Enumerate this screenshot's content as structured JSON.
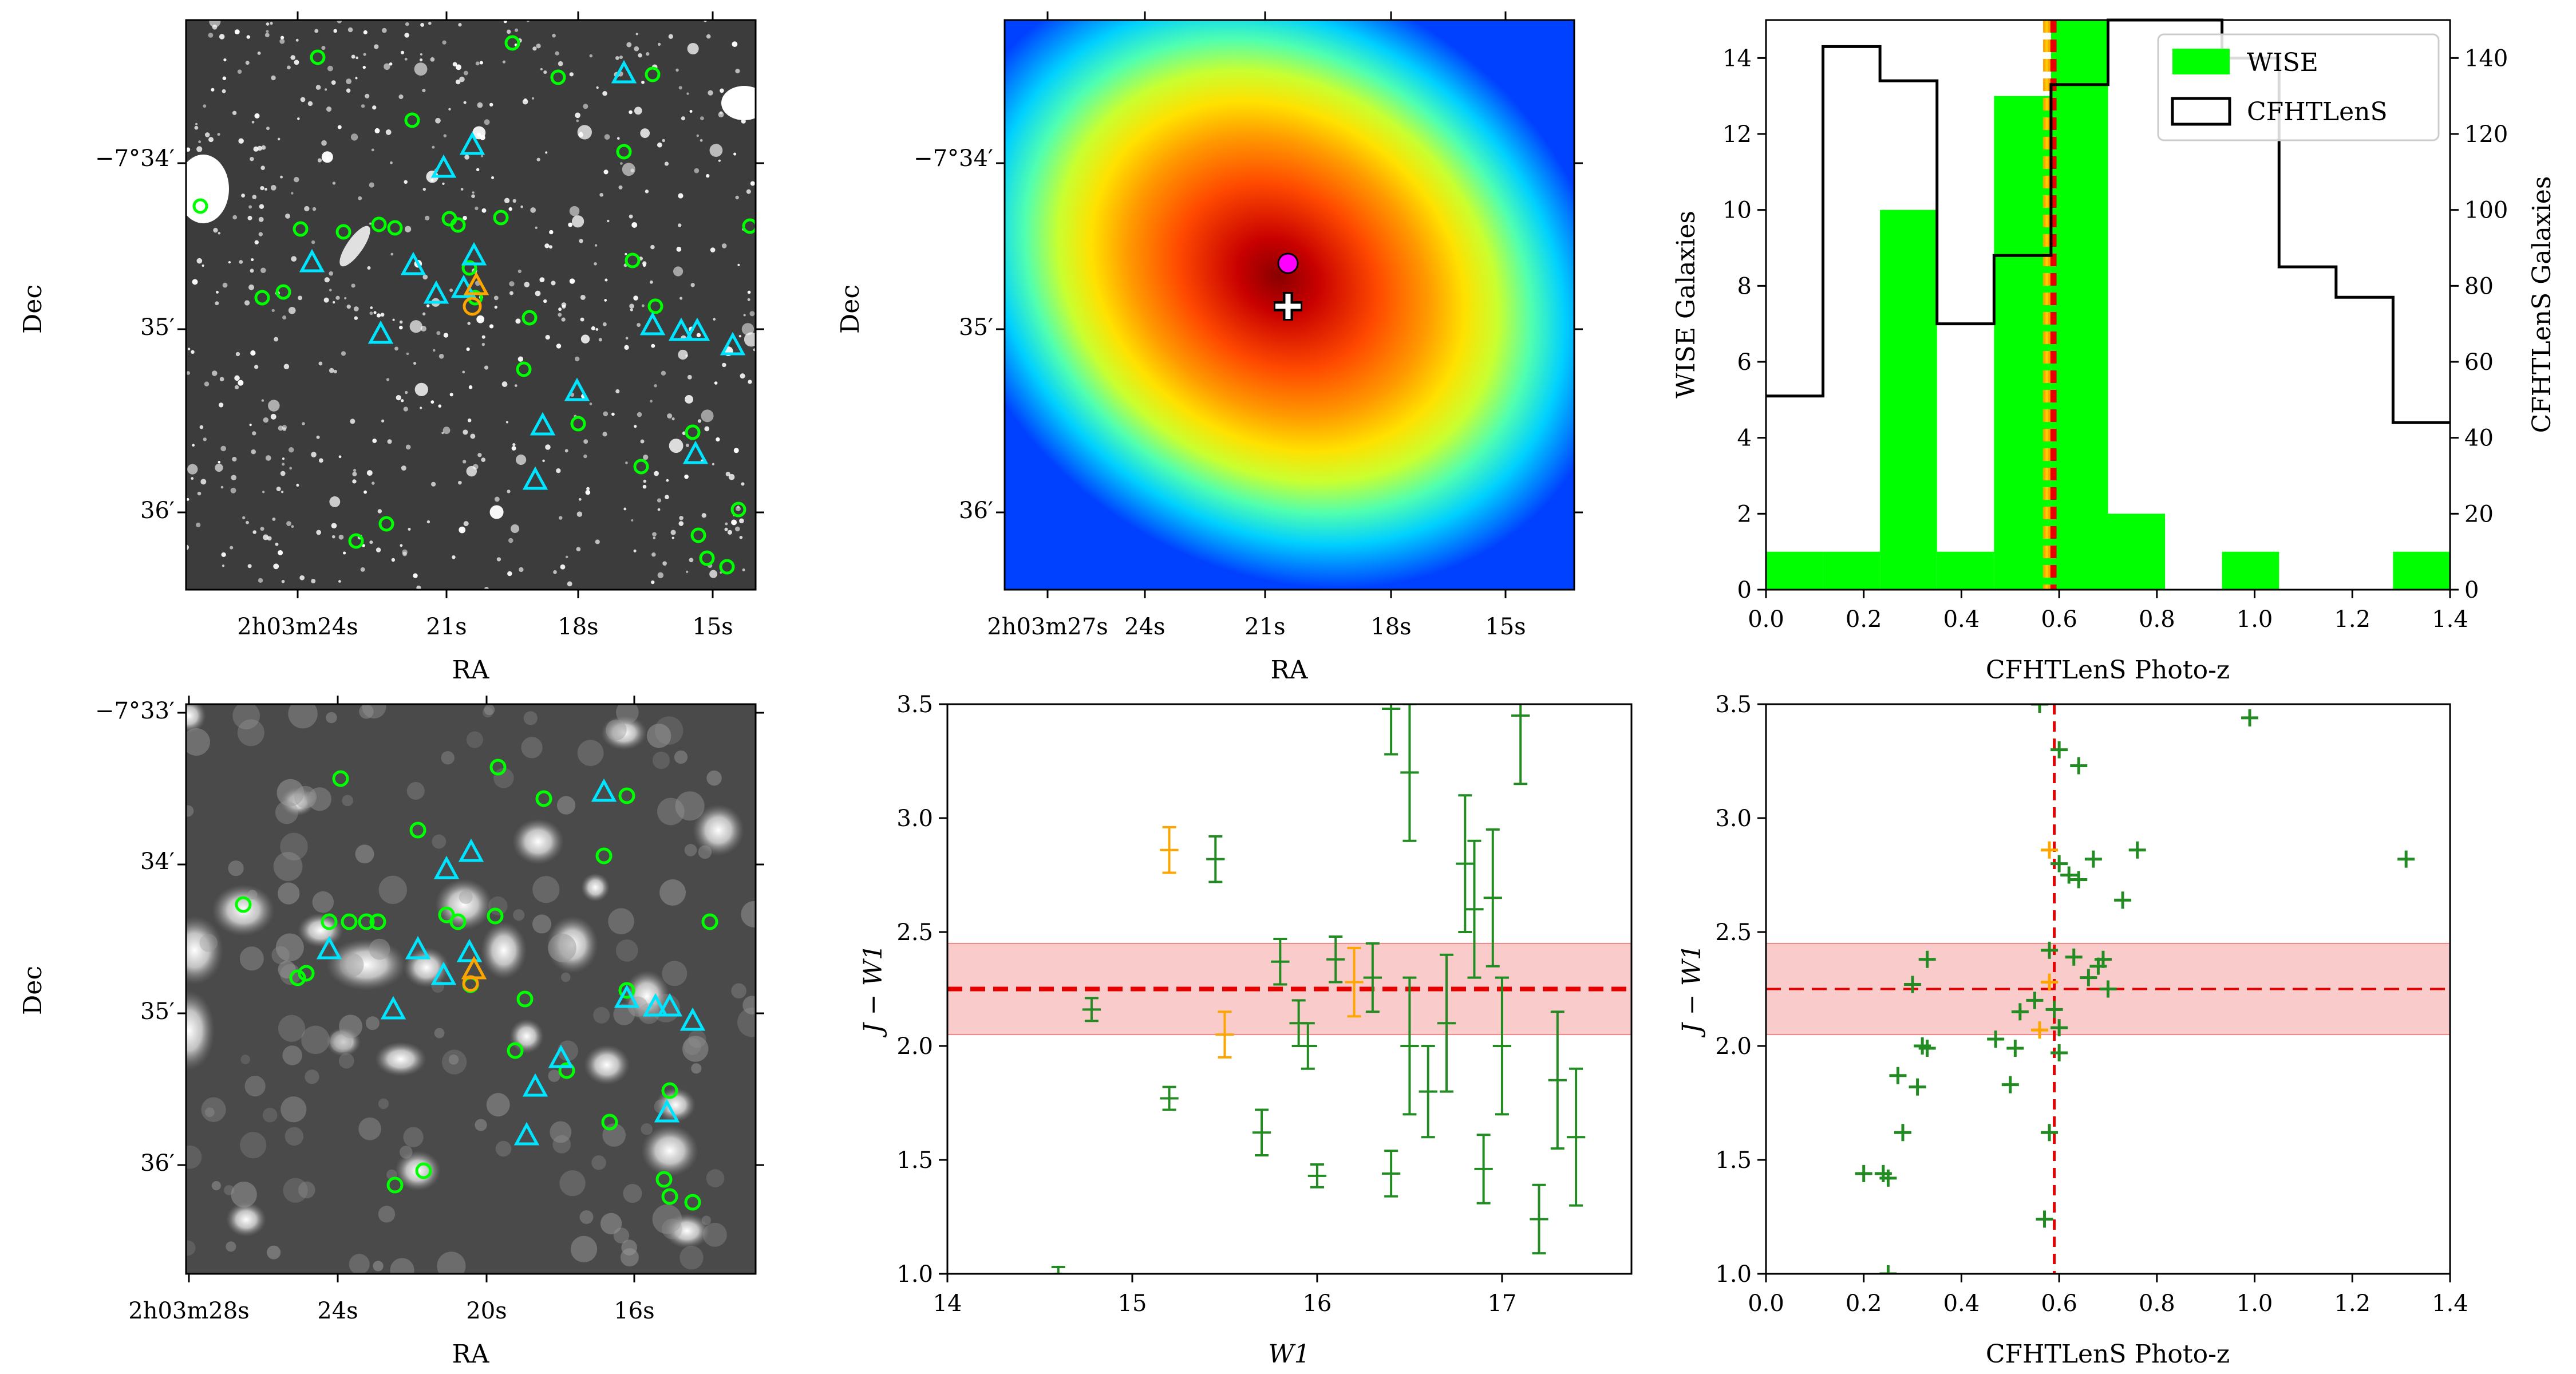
{
  "colors": {
    "wise": "#00ff00",
    "cfht": "#000000",
    "marker_green": "#228b22",
    "marker_orange": "#ffa500",
    "cyan": "#00e5ff",
    "red_line": "#e60000",
    "band": "#f5a0a0",
    "magenta": "#ff00ff"
  },
  "panels": {
    "p1": {
      "xlabel": "RA",
      "ylabel": "Dec",
      "xticks": [
        "2h03m24s",
        "21s",
        "18s",
        "15s"
      ],
      "yticks": [
        "−7°34′",
        "35′",
        "36′"
      ]
    },
    "p2": {
      "xlabel": "RA",
      "ylabel": "Dec",
      "xticks": [
        "2h03m27s",
        "24s",
        "21s",
        "18s",
        "15s"
      ],
      "yticks": [
        "−7°34′",
        "35′",
        "36′"
      ]
    },
    "p4": {
      "xlabel": "RA",
      "ylabel": "Dec",
      "xticks": [
        "2h03m28s",
        "24s",
        "20s",
        "16s"
      ],
      "yticks": [
        "−7°33′",
        "34′",
        "35′",
        "36′"
      ]
    }
  },
  "chart_data": [
    {
      "type": "bar",
      "panel": "histogram",
      "xlabel": "CFHTLenS Photo-z",
      "ylabel": "WISE Galaxies",
      "ylabel_right": "CFHTLenS Galaxies",
      "xlim": [
        0.0,
        1.4
      ],
      "ylim": [
        0,
        15
      ],
      "ylim_right": [
        0,
        150
      ],
      "xticks": [
        "0.0",
        "0.2",
        "0.4",
        "0.6",
        "0.8",
        "1.0",
        "1.2",
        "1.4"
      ],
      "yticks": [
        "0",
        "2",
        "4",
        "6",
        "8",
        "10",
        "12",
        "14"
      ],
      "yticks_right": [
        "0",
        "20",
        "40",
        "60",
        "80",
        "100",
        "120",
        "140"
      ],
      "legend": [
        "WISE",
        "CFHTLenS"
      ],
      "bin_edges": [
        0.0,
        0.1167,
        0.2333,
        0.35,
        0.4667,
        0.5833,
        0.7,
        0.8167,
        0.9333,
        1.05,
        1.1667,
        1.2833,
        1.4
      ],
      "wise_counts": [
        1,
        1,
        10,
        1,
        13,
        15,
        2,
        0,
        1,
        0,
        0,
        1
      ],
      "cfht_counts": [
        51,
        143,
        134,
        70,
        88,
        133,
        150,
        150,
        140,
        85,
        77,
        44
      ],
      "vlines": [
        0.57,
        0.575,
        0.58,
        0.585,
        0.59
      ]
    },
    {
      "type": "scatter",
      "panel": "color-magnitude",
      "xlabel": "W1",
      "ylabel": "J − W1",
      "xlim": [
        14,
        17.7
      ],
      "ylim": [
        1.0,
        3.5
      ],
      "xticks": [
        "14",
        "15",
        "16",
        "17"
      ],
      "yticks": [
        "1.0",
        "1.5",
        "2.0",
        "2.5",
        "3.0",
        "3.5"
      ],
      "hline": 2.25,
      "band": [
        2.05,
        2.45
      ],
      "green": [
        [
          14.6,
          1.0,
          0.02,
          0.03
        ],
        [
          14.78,
          2.16,
          0.05,
          0.05
        ],
        [
          15.2,
          1.77,
          0.05,
          0.05
        ],
        [
          15.45,
          2.82,
          0.05,
          0.1
        ],
        [
          15.7,
          1.62,
          0.05,
          0.1
        ],
        [
          15.8,
          2.37,
          0.05,
          0.1
        ],
        [
          15.9,
          2.1,
          0.05,
          0.1
        ],
        [
          15.95,
          2.0,
          0.05,
          0.1
        ],
        [
          16.0,
          1.43,
          0.05,
          0.05
        ],
        [
          16.1,
          2.38,
          0.05,
          0.1
        ],
        [
          16.3,
          2.3,
          0.05,
          0.15
        ],
        [
          16.4,
          1.44,
          0.05,
          0.1
        ],
        [
          16.4,
          3.48,
          0.05,
          0.2
        ],
        [
          16.5,
          3.2,
          0.05,
          0.3
        ],
        [
          16.5,
          2.0,
          0.05,
          0.3
        ],
        [
          16.6,
          1.8,
          0.05,
          0.2
        ],
        [
          16.7,
          2.1,
          0.05,
          0.3
        ],
        [
          16.8,
          2.8,
          0.05,
          0.3
        ],
        [
          16.85,
          2.6,
          0.05,
          0.3
        ],
        [
          16.9,
          1.46,
          0.05,
          0.15
        ],
        [
          16.95,
          2.65,
          0.05,
          0.3
        ],
        [
          17.0,
          2.0,
          0.05,
          0.3
        ],
        [
          17.1,
          3.45,
          0.05,
          0.3
        ],
        [
          17.2,
          1.24,
          0.05,
          0.15
        ],
        [
          17.3,
          1.85,
          0.05,
          0.3
        ],
        [
          17.4,
          1.6,
          0.05,
          0.3
        ]
      ],
      "orange": [
        [
          15.2,
          2.86,
          0.05,
          0.1
        ],
        [
          15.5,
          2.05,
          0.05,
          0.1
        ],
        [
          16.2,
          2.28,
          0.05,
          0.15
        ]
      ]
    },
    {
      "type": "scatter",
      "panel": "color-photoz",
      "xlabel": "CFHTLenS Photo-z",
      "ylabel": "J − W1",
      "xlim": [
        0.0,
        1.4
      ],
      "ylim": [
        1.0,
        3.5
      ],
      "xticks": [
        "0.0",
        "0.2",
        "0.4",
        "0.6",
        "0.8",
        "1.0",
        "1.2",
        "1.4"
      ],
      "yticks": [
        "1.0",
        "1.5",
        "2.0",
        "2.5",
        "3.0",
        "3.5"
      ],
      "hline": 2.25,
      "band": [
        2.05,
        2.45
      ],
      "vline": 0.59,
      "green": [
        [
          0.2,
          1.44
        ],
        [
          0.24,
          1.44
        ],
        [
          0.25,
          1.42
        ],
        [
          0.25,
          1.0
        ],
        [
          0.27,
          1.87
        ],
        [
          0.28,
          1.62
        ],
        [
          0.3,
          2.27
        ],
        [
          0.31,
          1.82
        ],
        [
          0.32,
          2.0
        ],
        [
          0.33,
          2.38
        ],
        [
          0.33,
          1.99
        ],
        [
          0.47,
          2.03
        ],
        [
          0.5,
          1.83
        ],
        [
          0.51,
          1.99
        ],
        [
          0.52,
          2.15
        ],
        [
          0.55,
          2.2
        ],
        [
          0.57,
          1.24
        ],
        [
          0.58,
          1.62
        ],
        [
          0.58,
          2.42
        ],
        [
          0.59,
          2.16
        ],
        [
          0.6,
          2.08
        ],
        [
          0.6,
          1.97
        ],
        [
          0.6,
          2.8
        ],
        [
          0.6,
          3.3
        ],
        [
          0.62,
          2.75
        ],
        [
          0.63,
          2.39
        ],
        [
          0.64,
          2.73
        ],
        [
          0.64,
          3.23
        ],
        [
          0.66,
          2.3
        ],
        [
          0.67,
          2.82
        ],
        [
          0.68,
          2.35
        ],
        [
          0.69,
          2.38
        ],
        [
          0.7,
          2.25
        ],
        [
          0.73,
          2.64
        ],
        [
          0.76,
          2.86
        ],
        [
          0.99,
          3.44
        ],
        [
          1.31,
          2.82
        ],
        [
          0.56,
          3.5
        ]
      ],
      "orange": [
        [
          0.58,
          2.86
        ],
        [
          0.56,
          2.07
        ],
        [
          0.58,
          2.28
        ]
      ]
    }
  ]
}
